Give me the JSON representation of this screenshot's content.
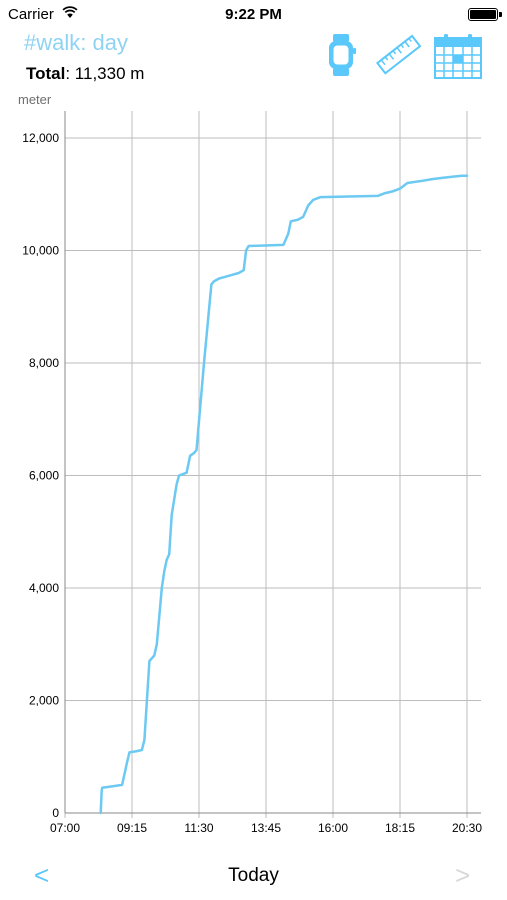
{
  "status_bar": {
    "carrier": "Carrier",
    "time": "9:22 PM"
  },
  "header": {
    "title": "#walk: day",
    "total_label": "Total",
    "total_value": ": 11,330 m",
    "unit": "meter",
    "icons": [
      "watch-icon",
      "ruler-icon",
      "calendar-icon"
    ]
  },
  "colors": {
    "accent": "#5ac8fa",
    "title": "#8fd3f4",
    "line": "#6cc9f2",
    "grid": "#bdbdbd",
    "disabled": "#d8d8d8"
  },
  "chart_data": {
    "type": "line",
    "ylabel": "meter",
    "ylim": [
      0,
      12000
    ],
    "y_ticks": [
      0,
      2000,
      4000,
      6000,
      8000,
      10000,
      12000
    ],
    "y_tick_labels": [
      "0",
      "2,000",
      "4,000",
      "6,000",
      "8,000",
      "10,000",
      "12,000"
    ],
    "x_ticks": [
      "07:00",
      "09:15",
      "11:30",
      "13:45",
      "16:00",
      "18:15",
      "20:30"
    ],
    "xlim": [
      "07:00",
      "20:30"
    ],
    "grid": true,
    "series": [
      {
        "points": [
          [
            "08:12",
            0
          ],
          [
            "08:14",
            400
          ],
          [
            "08:15",
            450
          ],
          [
            "08:40",
            480
          ],
          [
            "08:55",
            500
          ],
          [
            "09:00",
            700
          ],
          [
            "09:05",
            900
          ],
          [
            "09:10",
            1080
          ],
          [
            "09:25",
            1100
          ],
          [
            "09:35",
            1120
          ],
          [
            "09:40",
            1300
          ],
          [
            "09:45",
            2000
          ],
          [
            "09:50",
            2700
          ],
          [
            "10:00",
            2800
          ],
          [
            "10:05",
            3000
          ],
          [
            "10:10",
            3500
          ],
          [
            "10:15",
            4000
          ],
          [
            "10:20",
            4300
          ],
          [
            "10:25",
            4500
          ],
          [
            "10:30",
            4600
          ],
          [
            "10:35",
            5300
          ],
          [
            "10:45",
            5850
          ],
          [
            "10:50",
            6000
          ],
          [
            "11:05",
            6050
          ],
          [
            "11:12",
            6350
          ],
          [
            "11:20",
            6400
          ],
          [
            "11:25",
            6450
          ],
          [
            "11:40",
            8000
          ],
          [
            "11:55",
            9400
          ],
          [
            "12:00",
            9450
          ],
          [
            "12:10",
            9500
          ],
          [
            "12:30",
            9550
          ],
          [
            "12:50",
            9600
          ],
          [
            "13:00",
            9650
          ],
          [
            "13:05",
            10000
          ],
          [
            "13:10",
            10080
          ],
          [
            "14:20",
            10100
          ],
          [
            "14:30",
            10300
          ],
          [
            "14:35",
            10520
          ],
          [
            "14:50",
            10550
          ],
          [
            "15:00",
            10600
          ],
          [
            "15:10",
            10800
          ],
          [
            "15:20",
            10900
          ],
          [
            "15:35",
            10950
          ],
          [
            "17:30",
            10970
          ],
          [
            "17:45",
            11020
          ],
          [
            "18:00",
            11050
          ],
          [
            "18:15",
            11100
          ],
          [
            "18:30",
            11200
          ],
          [
            "19:00",
            11240
          ],
          [
            "19:20",
            11270
          ],
          [
            "19:40",
            11290
          ],
          [
            "20:00",
            11310
          ],
          [
            "20:20",
            11330
          ],
          [
            "20:30",
            11330
          ]
        ]
      }
    ]
  },
  "footer": {
    "prev": "<",
    "title": "Today",
    "next": ">"
  }
}
